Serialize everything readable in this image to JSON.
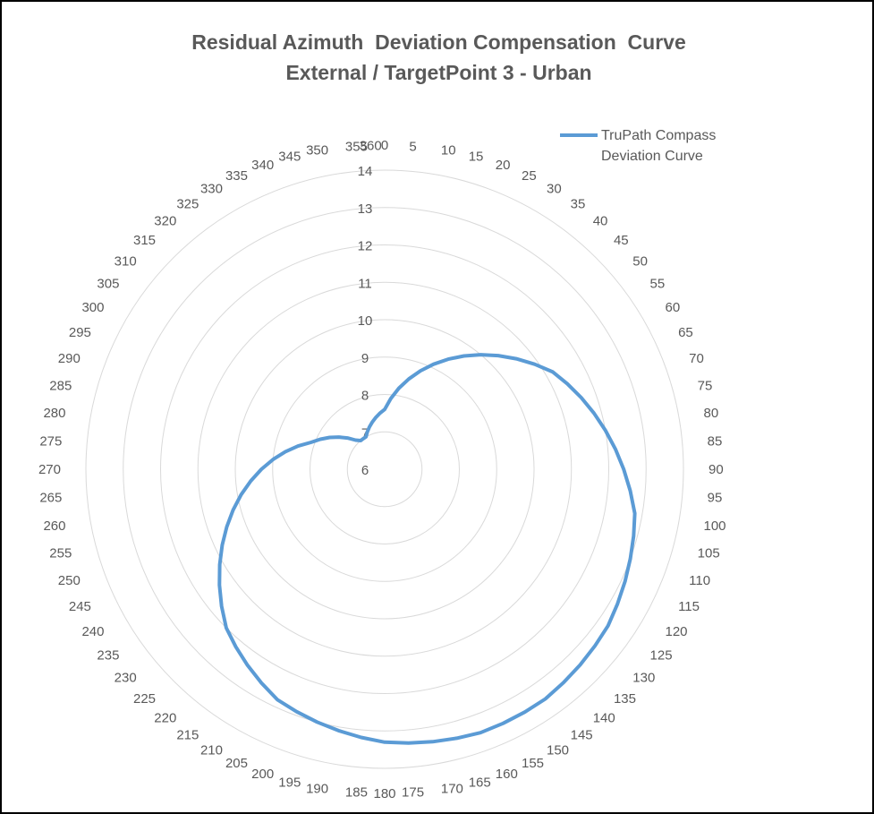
{
  "chart_data": {
    "type": "radar",
    "title": [
      "Residual Azimuth  Deviation Compensation  Curve",
      "External / TargetPoint 3 - Urban"
    ],
    "radial_axis": {
      "min": 6,
      "max": 14,
      "step": 1,
      "labels": [
        "6",
        "7",
        "8",
        "9",
        "10",
        "11",
        "12",
        "13",
        "14"
      ]
    },
    "categories": [
      "0",
      "5",
      "10",
      "15",
      "20",
      "25",
      "30",
      "35",
      "40",
      "45",
      "50",
      "55",
      "60",
      "65",
      "70",
      "75",
      "80",
      "85",
      "90",
      "95",
      "100",
      "105",
      "110",
      "115",
      "120",
      "125",
      "130",
      "135",
      "140",
      "145",
      "150",
      "155",
      "160",
      "165",
      "170",
      "175",
      "180",
      "185",
      "190",
      "195",
      "200",
      "205",
      "210",
      "215",
      "220",
      "225",
      "230",
      "235",
      "240",
      "245",
      "250",
      "255",
      "260",
      "265",
      "270",
      "275",
      "280",
      "285",
      "290",
      "295",
      "300",
      "305",
      "310",
      "315",
      "320",
      "325",
      "330",
      "335",
      "340",
      "345",
      "350",
      "355",
      "360"
    ],
    "series": [
      {
        "name": "TruPath Compass Deviation Curve",
        "color": "#5b9bd5",
        "values": [
          7.6,
          7.9,
          8.2,
          8.5,
          8.8,
          9.1,
          9.4,
          9.7,
          10.0,
          10.3,
          10.6,
          10.9,
          11.2,
          11.4,
          11.6,
          11.8,
          12.0,
          12.2,
          12.4,
          12.6,
          12.8,
          12.9,
          13.0,
          13.1,
          13.2,
          13.3,
          13.35,
          13.4,
          13.45,
          13.5,
          13.5,
          13.5,
          13.5,
          13.45,
          13.4,
          13.35,
          13.3,
          13.2,
          13.1,
          13.0,
          12.9,
          12.8,
          12.6,
          12.4,
          12.2,
          12.0,
          11.7,
          11.4,
          11.1,
          10.8,
          10.5,
          10.2,
          9.9,
          9.6,
          9.3,
          9.0,
          8.7,
          8.4,
          8.1,
          7.9,
          7.7,
          7.5,
          7.3,
          7.1,
          7.0,
          7.0,
          7.0,
          7.1,
          7.2,
          7.3,
          7.4,
          7.5,
          7.6
        ]
      }
    ],
    "legend_position": "top-right",
    "grid": true
  }
}
